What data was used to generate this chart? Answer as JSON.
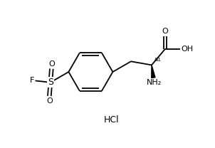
{
  "bg_color": "#ffffff",
  "line_color": "#000000",
  "line_width": 1.3,
  "font_size": 7.5,
  "figsize": [
    3.02,
    2.08
  ],
  "dpi": 100,
  "xlim": [
    0,
    10
  ],
  "ylim": [
    0,
    7
  ]
}
